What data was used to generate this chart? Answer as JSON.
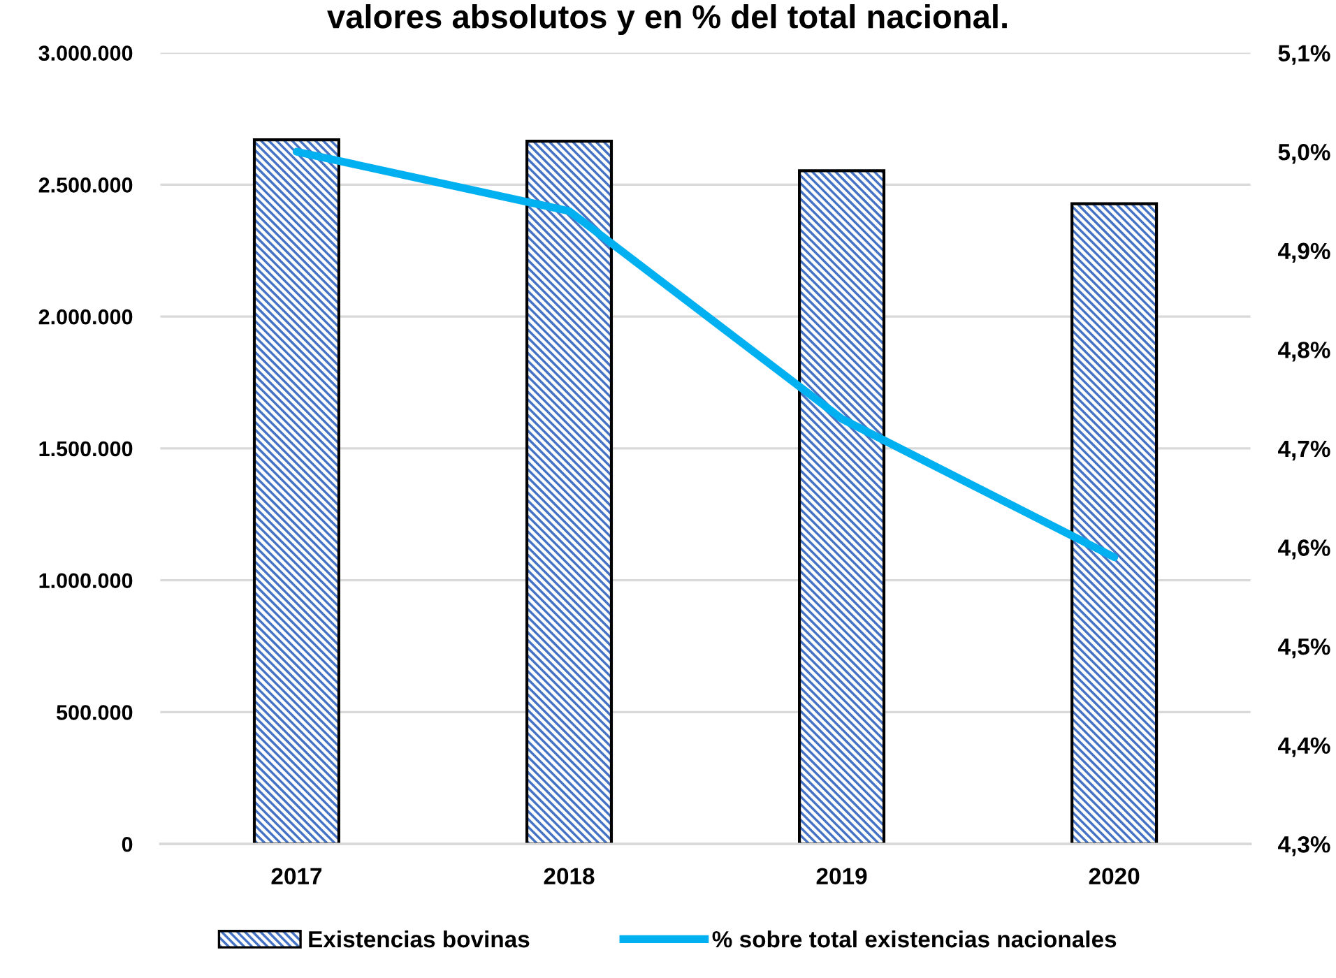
{
  "chart_data": {
    "type": "bar",
    "title": "valores absolutos y en % del total nacional.",
    "categories": [
      "2017",
      "2018",
      "2019",
      "2020"
    ],
    "series": [
      {
        "name": "Existencias bovinas",
        "color": "#4472c4",
        "values": [
          2670000,
          2665000,
          2553000,
          2428000
        ]
      },
      {
        "name": "% sobre total existencias nacionales",
        "type": "line",
        "axis": "y2",
        "color": "#00b0f0",
        "values": [
          5.0,
          4.94,
          4.73,
          4.59
        ]
      }
    ],
    "ylim": [
      0,
      3000000
    ],
    "yticks": [
      0,
      {
        "value": 500000,
        "label": "500.000"
      },
      {
        "value": 1000000,
        "label": "1.000.000"
      },
      {
        "value": 1500000,
        "label": "1.500.000"
      },
      {
        "value": 2000000,
        "label": "2.000.000"
      },
      {
        "value": 2500000,
        "label": "2.500.000"
      },
      {
        "value": 3000000,
        "label": "3.000.000"
      }
    ],
    "y2lim": [
      4.3,
      5.1
    ],
    "y2ticks": [
      {
        "value": 4.3,
        "label": "4,3%"
      },
      {
        "value": 4.4,
        "label": "4,4%"
      },
      {
        "value": 4.5,
        "label": "4,5%"
      },
      {
        "value": 4.6,
        "label": "4,6%"
      },
      {
        "value": 4.7,
        "label": "4,7%"
      },
      {
        "value": 4.8,
        "label": "4,8%"
      },
      {
        "value": 4.9,
        "label": "4,9%"
      },
      {
        "value": 5.0,
        "label": "5,0%"
      },
      {
        "value": 5.1,
        "label": "5,1%"
      }
    ],
    "grid": "y",
    "legend": "bottom",
    "marker": "none",
    "line_style": "solid"
  }
}
